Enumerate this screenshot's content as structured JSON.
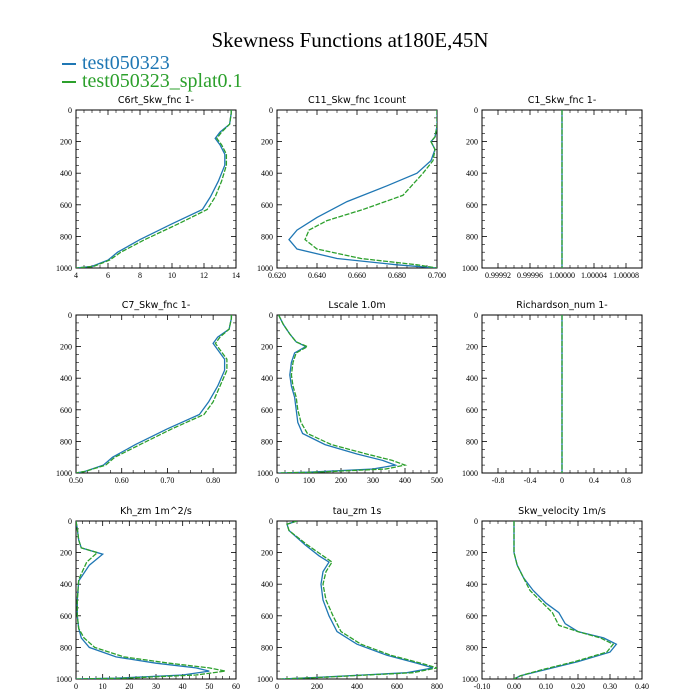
{
  "title": "Skewness Functions at180E,45N",
  "legend": [
    {
      "label": "test050323",
      "color": "#1f77b4"
    },
    {
      "label": "test050323_splat0.1",
      "color": "#2ca02c"
    }
  ],
  "chart_data": [
    {
      "type": "line",
      "title": "C6rt_Skw_fnc 1-",
      "xlim": [
        4,
        14
      ],
      "ylim": [
        0,
        1000
      ],
      "y_inverted": true,
      "xticks": [
        "4",
        "6",
        "8",
        "10",
        "12",
        "14"
      ],
      "yticks": [
        "0",
        "200",
        "400",
        "600",
        "800",
        "1000"
      ],
      "series": [
        {
          "name": "test050323",
          "x": [
            13.7,
            13.7,
            13.6,
            13.0,
            12.7,
            13.0,
            13.3,
            13.3,
            12.9,
            12.4,
            11.9,
            10.0,
            8.0,
            6.6,
            6.0,
            5.0,
            4.0
          ],
          "y": [
            0,
            20,
            90,
            140,
            180,
            220,
            280,
            350,
            450,
            550,
            630,
            720,
            820,
            900,
            950,
            990,
            1000
          ]
        },
        {
          "name": "test050323_splat0.1",
          "x": [
            13.7,
            13.7,
            13.6,
            13.1,
            12.8,
            13.1,
            13.4,
            13.4,
            13.1,
            12.7,
            12.2,
            10.4,
            8.3,
            6.8,
            6.1,
            5.1,
            4.0
          ],
          "y": [
            0,
            20,
            90,
            140,
            180,
            220,
            280,
            350,
            450,
            550,
            630,
            720,
            820,
            900,
            950,
            990,
            1000
          ]
        }
      ]
    },
    {
      "type": "line",
      "title": "C11_Skw_fnc 1count",
      "xlim": [
        0.62,
        0.7
      ],
      "ylim": [
        0,
        1000
      ],
      "y_inverted": true,
      "xticks": [
        "0.620",
        "0.640",
        "0.660",
        "0.680",
        "0.700"
      ],
      "yticks": [
        "0",
        "200",
        "400",
        "600",
        "800",
        "1000"
      ],
      "series": [
        {
          "name": "test050323",
          "x": [
            0.7,
            0.7,
            0.699,
            0.697,
            0.699,
            0.697,
            0.69,
            0.675,
            0.655,
            0.64,
            0.63,
            0.626,
            0.63,
            0.65,
            0.68,
            0.7
          ],
          "y": [
            0,
            100,
            170,
            200,
            250,
            320,
            400,
            480,
            580,
            680,
            760,
            820,
            880,
            940,
            980,
            1000
          ]
        },
        {
          "name": "test050323_splat0.1",
          "x": [
            0.7,
            0.7,
            0.699,
            0.697,
            0.699,
            0.698,
            0.693,
            0.683,
            0.663,
            0.645,
            0.636,
            0.634,
            0.64,
            0.662,
            0.69,
            0.7
          ],
          "y": [
            0,
            100,
            170,
            200,
            250,
            320,
            400,
            540,
            630,
            700,
            760,
            820,
            880,
            940,
            980,
            1000
          ]
        }
      ]
    },
    {
      "type": "line",
      "title": "C1_Skw_fnc 1-",
      "xlim": [
        0.9999,
        1.0001
      ],
      "ylim": [
        0,
        1000
      ],
      "y_inverted": true,
      "xticks": [
        "0.99992",
        "0.99996",
        "1.00000",
        "1.00004",
        "1.00008"
      ],
      "yticks": [
        "0",
        "200",
        "400",
        "600",
        "800",
        "1000"
      ],
      "series": [
        {
          "name": "test050323",
          "x": [
            1.0,
            1.0
          ],
          "y": [
            0,
            1000
          ]
        },
        {
          "name": "test050323_splat0.1",
          "x": [
            1.0,
            1.0
          ],
          "y": [
            0,
            1000
          ]
        }
      ]
    },
    {
      "type": "line",
      "title": "C7_Skw_fnc 1-",
      "xlim": [
        0.5,
        0.85
      ],
      "ylim": [
        0,
        1000
      ],
      "y_inverted": true,
      "xticks": [
        "0.50",
        "0.60",
        "0.70",
        "0.80"
      ],
      "yticks": [
        "0",
        "200",
        "400",
        "600",
        "800",
        "1000"
      ],
      "series": [
        {
          "name": "test050323",
          "x": [
            0.84,
            0.84,
            0.835,
            0.81,
            0.8,
            0.81,
            0.825,
            0.825,
            0.81,
            0.79,
            0.77,
            0.7,
            0.63,
            0.58,
            0.56,
            0.52,
            0.5
          ],
          "y": [
            0,
            20,
            90,
            140,
            180,
            220,
            280,
            350,
            450,
            550,
            630,
            720,
            820,
            900,
            950,
            990,
            1000
          ]
        },
        {
          "name": "test050323_splat0.1",
          "x": [
            0.84,
            0.84,
            0.835,
            0.815,
            0.805,
            0.815,
            0.83,
            0.83,
            0.815,
            0.8,
            0.78,
            0.71,
            0.64,
            0.585,
            0.565,
            0.52,
            0.5
          ],
          "y": [
            0,
            20,
            90,
            140,
            180,
            220,
            280,
            350,
            450,
            550,
            630,
            720,
            820,
            900,
            950,
            990,
            1000
          ]
        }
      ]
    },
    {
      "type": "line",
      "title": "Lscale 1.0m",
      "xlim": [
        0,
        500
      ],
      "ylim": [
        0,
        1000
      ],
      "y_inverted": true,
      "xticks": [
        "0",
        "100",
        "200",
        "300",
        "400",
        "500"
      ],
      "yticks": [
        "0",
        "200",
        "400",
        "600",
        "800",
        "1000"
      ],
      "series": [
        {
          "name": "test050323",
          "x": [
            5,
            10,
            20,
            40,
            60,
            90,
            55,
            45,
            40,
            45,
            55,
            60,
            65,
            80,
            150,
            250,
            330,
            370,
            300,
            100,
            5
          ],
          "y": [
            0,
            20,
            60,
            120,
            170,
            200,
            240,
            300,
            380,
            450,
            520,
            600,
            680,
            750,
            820,
            880,
            920,
            950,
            975,
            995,
            1000
          ]
        },
        {
          "name": "test050323_splat0.1",
          "x": [
            5,
            10,
            20,
            40,
            60,
            95,
            60,
            50,
            45,
            50,
            60,
            65,
            75,
            95,
            170,
            280,
            360,
            400,
            340,
            120,
            5
          ],
          "y": [
            0,
            20,
            60,
            120,
            170,
            200,
            240,
            300,
            380,
            450,
            520,
            600,
            680,
            750,
            820,
            880,
            920,
            950,
            975,
            995,
            1000
          ]
        }
      ]
    },
    {
      "type": "line",
      "title": "Richardson_num 1-",
      "xlim": [
        -1.0,
        1.0
      ],
      "ylim": [
        0,
        1000
      ],
      "y_inverted": true,
      "xticks": [
        "-0.8",
        "-0.4",
        "0",
        "0.4",
        "0.8"
      ],
      "yticks": [
        "0",
        "200",
        "400",
        "600",
        "800",
        "1000"
      ],
      "series": [
        {
          "name": "test050323",
          "x": [
            0,
            0
          ],
          "y": [
            0,
            1000
          ]
        },
        {
          "name": "test050323_splat0.1",
          "x": [
            0,
            0
          ],
          "y": [
            0,
            1000
          ]
        }
      ]
    },
    {
      "type": "line",
      "title": "Kh_zm 1m^2/s",
      "xlim": [
        0,
        60
      ],
      "ylim": [
        0,
        1000
      ],
      "y_inverted": true,
      "xticks": [
        "0",
        "10",
        "20",
        "30",
        "40",
        "50",
        "60"
      ],
      "yticks": [
        "0",
        "200",
        "400",
        "600",
        "800",
        "1000"
      ],
      "series": [
        {
          "name": "test050323",
          "x": [
            0,
            0.5,
            1,
            2,
            10,
            5,
            1,
            0.5,
            0.5,
            1,
            2,
            5,
            15,
            30,
            45,
            50,
            40,
            15,
            0
          ],
          "y": [
            0,
            50,
            120,
            170,
            210,
            280,
            380,
            500,
            600,
            680,
            740,
            800,
            860,
            900,
            930,
            950,
            975,
            995,
            1000
          ]
        },
        {
          "name": "test050323_splat0.1",
          "x": [
            0,
            0.5,
            1,
            2,
            8,
            4,
            1,
            0.5,
            0.5,
            1,
            3,
            7,
            18,
            35,
            50,
            56,
            45,
            18,
            0
          ],
          "y": [
            0,
            50,
            120,
            170,
            200,
            260,
            370,
            500,
            600,
            680,
            740,
            800,
            860,
            900,
            930,
            950,
            975,
            995,
            1000
          ]
        }
      ]
    },
    {
      "type": "line",
      "title": "tau_zm 1s",
      "xlim": [
        0,
        800
      ],
      "ylim": [
        0,
        1000
      ],
      "y_inverted": true,
      "xticks": [
        "0",
        "200",
        "400",
        "600",
        "800"
      ],
      "yticks": [
        "0",
        "200",
        "400",
        "600",
        "800",
        "1000"
      ],
      "series": [
        {
          "name": "test050323",
          "x": [
            100,
            50,
            60,
            140,
            210,
            260,
            230,
            220,
            230,
            260,
            300,
            400,
            550,
            700,
            780,
            650,
            200,
            20
          ],
          "y": [
            0,
            20,
            60,
            150,
            220,
            260,
            320,
            400,
            500,
            600,
            700,
            780,
            850,
            900,
            930,
            960,
            990,
            1000
          ]
        },
        {
          "name": "test050323_splat0.1",
          "x": [
            100,
            50,
            60,
            150,
            230,
            275,
            245,
            230,
            245,
            280,
            320,
            420,
            570,
            720,
            800,
            680,
            220,
            20
          ],
          "y": [
            0,
            20,
            60,
            150,
            220,
            260,
            320,
            400,
            500,
            600,
            700,
            780,
            850,
            900,
            930,
            960,
            990,
            1000
          ]
        }
      ]
    },
    {
      "type": "line",
      "title": "Skw_velocity 1m/s",
      "xlim": [
        -0.1,
        0.4
      ],
      "ylim": [
        0,
        1000
      ],
      "y_inverted": true,
      "xticks": [
        "-0.10",
        "0.00",
        "0.10",
        "0.20",
        "0.30",
        "0.40"
      ],
      "yticks": [
        "0",
        "200",
        "400",
        "600",
        "800",
        "1000"
      ],
      "series": [
        {
          "name": "test050323",
          "x": [
            0,
            0,
            0,
            0.01,
            0.03,
            0.06,
            0.1,
            0.14,
            0.16,
            0.2,
            0.28,
            0.32,
            0.3,
            0.2,
            0.1,
            0.02,
            0
          ],
          "y": [
            0,
            100,
            200,
            280,
            360,
            440,
            520,
            580,
            650,
            700,
            740,
            780,
            830,
            890,
            940,
            980,
            1000
          ]
        },
        {
          "name": "test050323_splat0.1",
          "x": [
            0,
            0,
            0,
            0.01,
            0.03,
            0.05,
            0.09,
            0.12,
            0.14,
            0.2,
            0.27,
            0.31,
            0.29,
            0.19,
            0.09,
            0.02,
            0
          ],
          "y": [
            0,
            100,
            200,
            280,
            360,
            440,
            520,
            580,
            660,
            700,
            740,
            780,
            830,
            890,
            940,
            980,
            1000
          ]
        }
      ]
    }
  ]
}
